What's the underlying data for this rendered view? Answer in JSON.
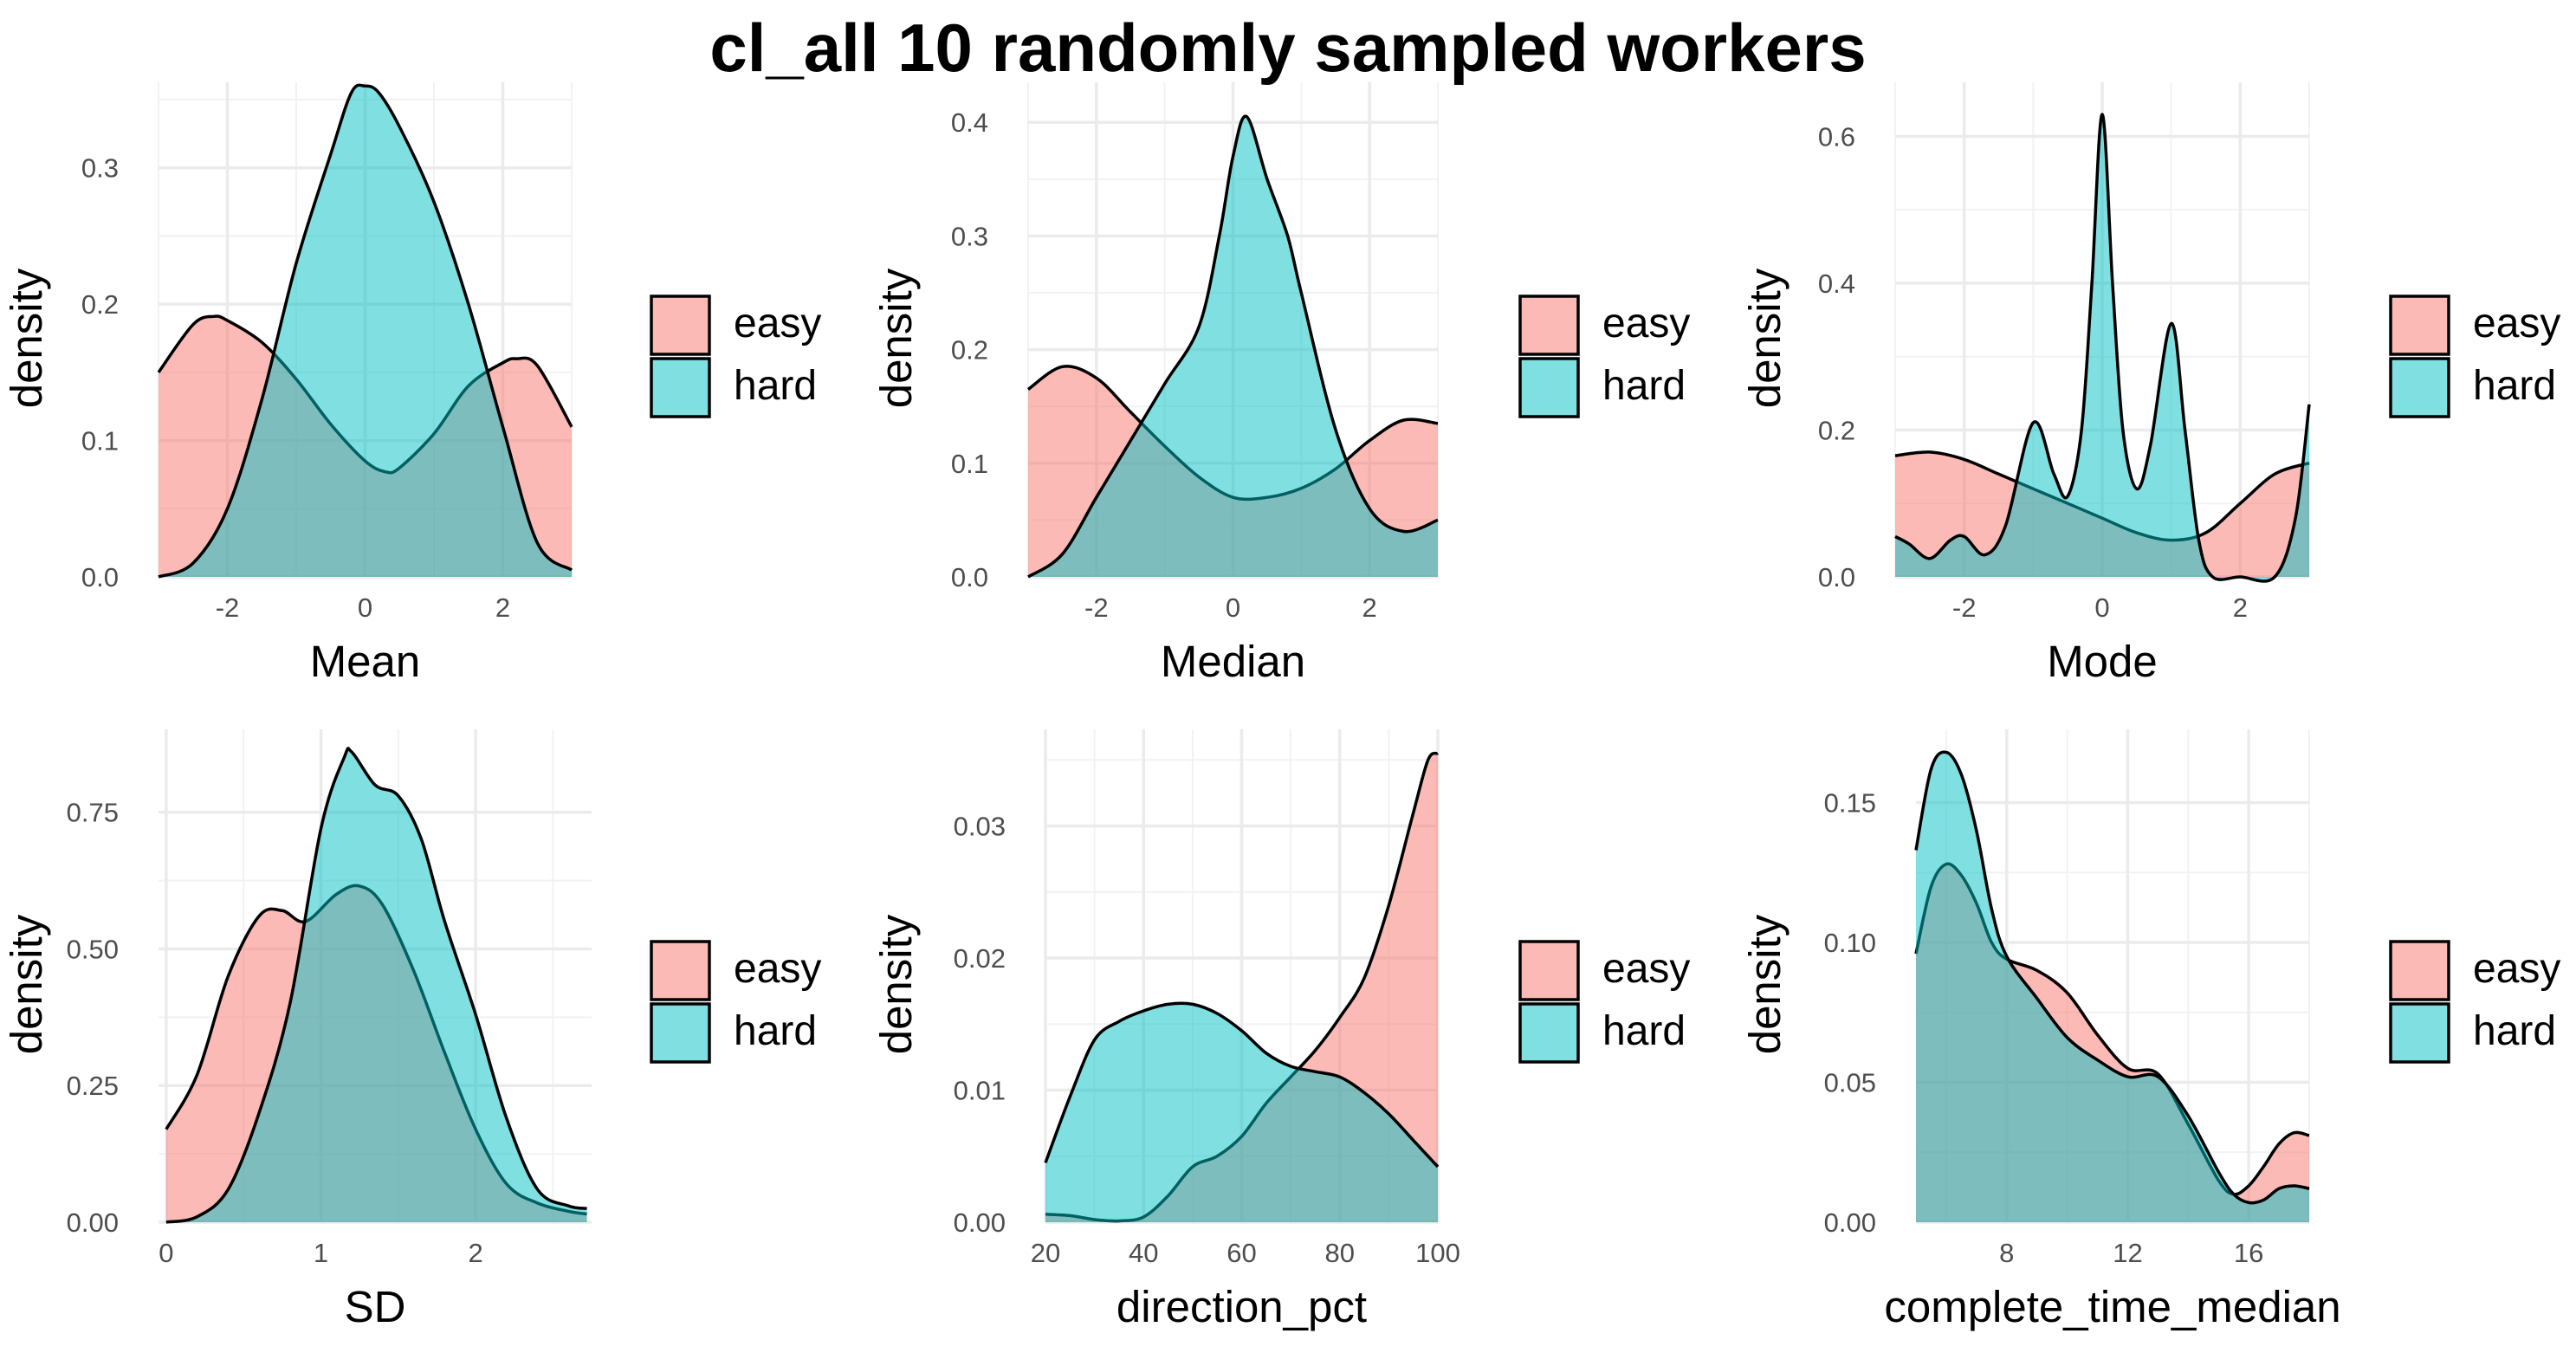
{
  "title": "cl_all 10 randomly sampled workers",
  "colors": {
    "easy": "#F8766D",
    "hard": "#00BFC4",
    "grid": "#EBEBEB",
    "text_tick": "#4D4D4D"
  },
  "chart_data": [
    {
      "type": "area",
      "xlabel": "Mean",
      "ylabel": "density",
      "xlim": [
        -3,
        3
      ],
      "ylim": [
        0,
        0.35
      ],
      "xticks": [
        -2,
        0,
        2
      ],
      "yticks": [
        0.0,
        0.1,
        0.2,
        0.3
      ],
      "ytick_labels": [
        "0.0",
        "0.1",
        "0.2",
        "0.3"
      ],
      "legend": [
        "easy",
        "hard"
      ],
      "series": [
        {
          "name": "easy",
          "x": [
            -3,
            -2.5,
            -2.2,
            -2,
            -1.5,
            -1,
            -0.5,
            0,
            0.3,
            0.5,
            1,
            1.5,
            2,
            2.2,
            2.5,
            3
          ],
          "values": [
            0.15,
            0.185,
            0.191,
            0.188,
            0.172,
            0.145,
            0.112,
            0.085,
            0.077,
            0.08,
            0.105,
            0.14,
            0.157,
            0.16,
            0.155,
            0.11
          ]
        },
        {
          "name": "hard",
          "x": [
            -3,
            -2.5,
            -2,
            -1.5,
            -1,
            -0.5,
            -0.2,
            0,
            0.2,
            0.5,
            1,
            1.5,
            2,
            2.5,
            3
          ],
          "values": [
            0.0,
            0.01,
            0.05,
            0.13,
            0.23,
            0.31,
            0.355,
            0.36,
            0.355,
            0.33,
            0.275,
            0.2,
            0.11,
            0.025,
            0.005
          ]
        }
      ]
    },
    {
      "type": "area",
      "xlabel": "Median",
      "ylabel": "density",
      "xlim": [
        -3,
        3
      ],
      "ylim": [
        0,
        0.42
      ],
      "xticks": [
        -2,
        0,
        2
      ],
      "yticks": [
        0.0,
        0.1,
        0.2,
        0.3,
        0.4
      ],
      "ytick_labels": [
        "0.0",
        "0.1",
        "0.2",
        "0.3",
        "0.4"
      ],
      "legend": [
        "easy",
        "hard"
      ],
      "series": [
        {
          "name": "easy",
          "x": [
            -3,
            -2.5,
            -2,
            -1.5,
            -1,
            -0.5,
            0,
            0.5,
            1,
            1.5,
            2,
            2.5,
            3
          ],
          "values": [
            0.165,
            0.185,
            0.175,
            0.145,
            0.115,
            0.088,
            0.07,
            0.07,
            0.078,
            0.095,
            0.12,
            0.138,
            0.135
          ]
        },
        {
          "name": "hard",
          "x": [
            -3,
            -2.5,
            -2,
            -1.5,
            -1,
            -0.5,
            -0.2,
            0,
            0.2,
            0.5,
            0.8,
            1,
            1.5,
            2,
            2.5,
            3
          ],
          "values": [
            0.0,
            0.02,
            0.07,
            0.12,
            0.17,
            0.22,
            0.3,
            0.37,
            0.405,
            0.35,
            0.3,
            0.25,
            0.13,
            0.06,
            0.04,
            0.05
          ]
        }
      ]
    },
    {
      "type": "area",
      "xlabel": "Mode",
      "ylabel": "density",
      "xlim": [
        -3,
        3
      ],
      "ylim": [
        0,
        0.65
      ],
      "xticks": [
        -2,
        0,
        2
      ],
      "yticks": [
        0.0,
        0.2,
        0.4,
        0.6
      ],
      "ytick_labels": [
        "0.0",
        "0.2",
        "0.4",
        "0.6"
      ],
      "legend": [
        "easy",
        "hard"
      ],
      "series": [
        {
          "name": "easy",
          "x": [
            -3,
            -2.5,
            -2,
            -1.5,
            -1,
            -0.5,
            0,
            0.5,
            1,
            1.5,
            2,
            2.5,
            3
          ],
          "values": [
            0.165,
            0.17,
            0.16,
            0.14,
            0.12,
            0.1,
            0.08,
            0.06,
            0.05,
            0.06,
            0.1,
            0.14,
            0.155
          ]
        },
        {
          "name": "hard",
          "x": [
            -3,
            -2.8,
            -2.5,
            -2.2,
            -2,
            -1.7,
            -1.4,
            -1,
            -0.7,
            -0.5,
            -0.3,
            -0.15,
            0,
            0.15,
            0.3,
            0.5,
            0.7,
            1,
            1.2,
            1.4,
            1.6,
            2,
            2.5,
            2.8,
            3
          ],
          "values": [
            0.055,
            0.045,
            0.025,
            0.05,
            0.055,
            0.03,
            0.07,
            0.21,
            0.14,
            0.11,
            0.2,
            0.4,
            0.63,
            0.4,
            0.2,
            0.12,
            0.18,
            0.345,
            0.2,
            0.05,
            0.0,
            0.0,
            0.0,
            0.08,
            0.235
          ]
        }
      ]
    },
    {
      "type": "area",
      "xlabel": "SD",
      "ylabel": "density",
      "xlim": [
        -0.05,
        2.75
      ],
      "ylim": [
        0,
        0.87
      ],
      "xticks": [
        0,
        1,
        2
      ],
      "yticks": [
        0.0,
        0.25,
        0.5,
        0.75
      ],
      "ytick_labels": [
        "0.00",
        "0.25",
        "0.50",
        "0.75"
      ],
      "legend": [
        "easy",
        "hard"
      ],
      "series": [
        {
          "name": "easy",
          "x": [
            0,
            0.2,
            0.4,
            0.6,
            0.75,
            0.9,
            1.1,
            1.25,
            1.4,
            1.6,
            1.8,
            2.0,
            2.2,
            2.4,
            2.6,
            2.72
          ],
          "values": [
            0.17,
            0.27,
            0.45,
            0.56,
            0.57,
            0.55,
            0.6,
            0.615,
            0.58,
            0.46,
            0.31,
            0.17,
            0.07,
            0.035,
            0.02,
            0.015
          ]
        },
        {
          "name": "hard",
          "x": [
            0,
            0.2,
            0.4,
            0.6,
            0.8,
            1.0,
            1.15,
            1.2,
            1.35,
            1.5,
            1.65,
            1.8,
            2.0,
            2.2,
            2.4,
            2.6,
            2.72
          ],
          "values": [
            0.0,
            0.01,
            0.06,
            0.2,
            0.4,
            0.72,
            0.85,
            0.86,
            0.8,
            0.78,
            0.7,
            0.55,
            0.38,
            0.19,
            0.06,
            0.03,
            0.025
          ]
        }
      ]
    },
    {
      "type": "area",
      "xlabel": "direction_pct",
      "ylabel": "density",
      "xlim": [
        20,
        100
      ],
      "ylim": [
        0,
        0.036
      ],
      "xticks": [
        20,
        40,
        60,
        80,
        100
      ],
      "yticks": [
        0.0,
        0.01,
        0.02,
        0.03
      ],
      "ytick_labels": [
        "0.00",
        "0.01",
        "0.02",
        "0.03"
      ],
      "legend": [
        "easy",
        "hard"
      ],
      "series": [
        {
          "name": "easy",
          "x": [
            20,
            25,
            30,
            35,
            40,
            45,
            50,
            55,
            60,
            65,
            70,
            75,
            80,
            85,
            90,
            95,
            98,
            100
          ],
          "values": [
            0.0006,
            0.0005,
            0.0002,
            0.0001,
            0.0004,
            0.002,
            0.0042,
            0.005,
            0.0065,
            0.009,
            0.011,
            0.013,
            0.0155,
            0.0185,
            0.024,
            0.031,
            0.035,
            0.0355
          ]
        },
        {
          "name": "hard",
          "x": [
            20,
            25,
            30,
            35,
            40,
            45,
            50,
            55,
            60,
            65,
            70,
            75,
            80,
            85,
            90,
            95,
            100
          ],
          "values": [
            0.0045,
            0.0095,
            0.0138,
            0.0152,
            0.016,
            0.0165,
            0.0165,
            0.0158,
            0.0145,
            0.0128,
            0.0118,
            0.0114,
            0.011,
            0.0098,
            0.0082,
            0.0062,
            0.0042
          ]
        }
      ]
    },
    {
      "type": "area",
      "xlabel": "complete_time_median",
      "ylabel": "density",
      "xlim": [
        5,
        18
      ],
      "ylim": [
        0,
        0.17
      ],
      "xticks": [
        8,
        12,
        16
      ],
      "yticks": [
        0.0,
        0.05,
        0.1,
        0.15
      ],
      "ytick_labels": [
        "0.00",
        "0.05",
        "0.10",
        "0.15"
      ],
      "legend": [
        "easy",
        "hard"
      ],
      "series": [
        {
          "name": "easy",
          "x": [
            5,
            5.5,
            6,
            6.5,
            7,
            7.5,
            8,
            9,
            10,
            11,
            12,
            13,
            14,
            15,
            15.5,
            16,
            16.5,
            17,
            17.5,
            18
          ],
          "values": [
            0.096,
            0.12,
            0.128,
            0.124,
            0.114,
            0.1,
            0.094,
            0.09,
            0.082,
            0.067,
            0.055,
            0.053,
            0.035,
            0.015,
            0.01,
            0.013,
            0.02,
            0.028,
            0.032,
            0.031
          ]
        },
        {
          "name": "hard",
          "x": [
            5,
            5.5,
            6,
            6.5,
            7,
            7.5,
            8,
            9,
            10,
            11,
            12,
            13,
            14,
            15,
            15.5,
            16,
            16.5,
            17,
            17.5,
            18
          ],
          "values": [
            0.133,
            0.162,
            0.168,
            0.16,
            0.14,
            0.112,
            0.095,
            0.08,
            0.066,
            0.058,
            0.052,
            0.052,
            0.038,
            0.018,
            0.01,
            0.007,
            0.008,
            0.012,
            0.013,
            0.012
          ]
        }
      ]
    }
  ]
}
